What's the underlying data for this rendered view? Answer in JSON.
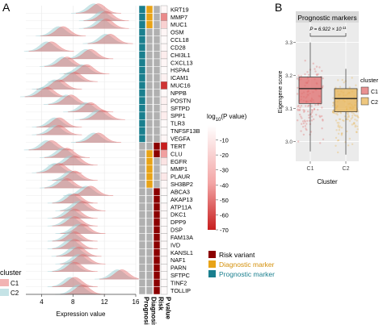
{
  "panels": {
    "a": "A",
    "b": "B"
  },
  "colors": {
    "c1": "#e06666",
    "c2": "#9fcfd4",
    "risk": "#8b0000",
    "diagnostic": "#e8a317",
    "prognostic": "#1a7f8e",
    "grey": "#b0b0b0",
    "panel_b_c1": "#e06c6c",
    "panel_b_c2": "#e8b454"
  },
  "chart_data": [
    {
      "type": "ridgeline",
      "panel": "A",
      "genes": [
        "KRT19",
        "MMP7",
        "MUC1",
        "OSM",
        "CCL18",
        "CD28",
        "CHI3L1",
        "CXCL13",
        "HSPA4",
        "ICAM1",
        "MUC16",
        "NPPB",
        "POSTN",
        "SFTPD",
        "SPP1",
        "TLR3",
        "TNFSF13B",
        "VEGFA",
        "TERT",
        "CLU",
        "EGFR",
        "MMP1",
        "PLAUR",
        "SH3BP2",
        "ABCA3",
        "AKAP13",
        "ATP11A",
        "DKC1",
        "DPP9",
        "DSP",
        "FAM13A",
        "IVD",
        "KANSL1",
        "NAF1",
        "PARN",
        "SFTPC",
        "TINF2",
        "TOLLIP"
      ],
      "peak_expression": [
        11,
        12,
        12,
        6.5,
        12.5,
        5,
        10,
        7,
        9.5,
        8,
        6,
        4.5,
        7.5,
        10,
        11.5,
        6,
        6,
        11,
        5,
        7,
        8,
        6,
        8,
        7,
        10,
        8,
        9,
        8,
        8,
        9,
        8,
        8,
        8.5,
        9,
        8,
        14,
        8,
        9
      ],
      "xlabel": "Expression value",
      "xticks": [
        4,
        8,
        12,
        16
      ],
      "xlim": [
        2,
        16
      ],
      "legend": {
        "title": "cluster",
        "items": [
          "C1",
          "C2"
        ]
      },
      "annotation_columns": [
        "Prognosis",
        "Diagnosis",
        "Risk",
        "P value"
      ],
      "prognosis_flag": [
        1,
        1,
        1,
        1,
        1,
        1,
        1,
        1,
        1,
        1,
        1,
        1,
        1,
        1,
        1,
        1,
        1,
        1,
        0,
        0,
        0,
        0,
        0,
        0,
        0,
        0,
        0,
        0,
        0,
        0,
        0,
        0,
        0,
        0,
        0,
        0,
        0,
        0
      ],
      "diagnosis_flag": [
        1,
        1,
        1,
        0,
        0,
        0,
        0,
        0,
        0,
        0,
        0,
        0,
        0,
        0,
        0,
        0,
        0,
        0,
        0,
        1,
        1,
        1,
        1,
        1,
        0,
        0,
        0,
        0,
        0,
        0,
        0,
        0,
        0,
        0,
        0,
        0,
        0,
        0
      ],
      "risk_flag": [
        0,
        0,
        0,
        0,
        0,
        0,
        0,
        0,
        0,
        0,
        0,
        0,
        0,
        0,
        0,
        0,
        0,
        0,
        1,
        1,
        0,
        0,
        0,
        0,
        1,
        1,
        1,
        1,
        1,
        1,
        1,
        1,
        1,
        1,
        1,
        1,
        1,
        1
      ],
      "log10_p": [
        -3,
        -45,
        -20,
        -4,
        -2,
        -3,
        -8,
        -4,
        -2,
        -6,
        -65,
        -2,
        -6,
        -5,
        -8,
        -2,
        -2,
        -4,
        -70,
        -40,
        -12,
        -2,
        -10,
        -3,
        -2,
        -1,
        -3,
        -2,
        -2,
        -2,
        -2,
        -2,
        -2,
        -2,
        -2,
        -2,
        -2,
        -2
      ],
      "pvalue_legend": {
        "title_prefix": "log",
        "title_sub": "10",
        "title_suffix": "(P value)",
        "ticks": [
          "-10",
          "-20",
          "-30",
          "-40",
          "-50",
          "-60",
          "-70"
        ],
        "tick_values": [
          -10,
          -20,
          -30,
          -40,
          -50,
          -60,
          -70
        ],
        "range": [
          0,
          -70
        ]
      },
      "category_legend": [
        "Risk variant",
        "Diagnostic marker",
        "Prognostic marker"
      ]
    },
    {
      "type": "boxplot",
      "panel": "B",
      "title": "Prognostic markers",
      "categories": [
        "C1",
        "C2"
      ],
      "stats": [
        {
          "min": 2.97,
          "q1": 3.115,
          "median": 3.16,
          "q3": 3.195,
          "max": 3.3
        },
        {
          "min": 2.96,
          "q1": 3.09,
          "median": 3.13,
          "q3": 3.16,
          "max": 3.22
        }
      ],
      "ylabel": "Eigengene score",
      "xlabel": "Cluster",
      "yticks": [
        3.0,
        3.1,
        3.2,
        3.3
      ],
      "ylim": [
        2.94,
        3.36
      ],
      "annotation": "P = 6.922 × 10",
      "annotation_exp": "-11",
      "legend": {
        "title": "cluster",
        "items": [
          "C1",
          "C2"
        ]
      }
    }
  ]
}
